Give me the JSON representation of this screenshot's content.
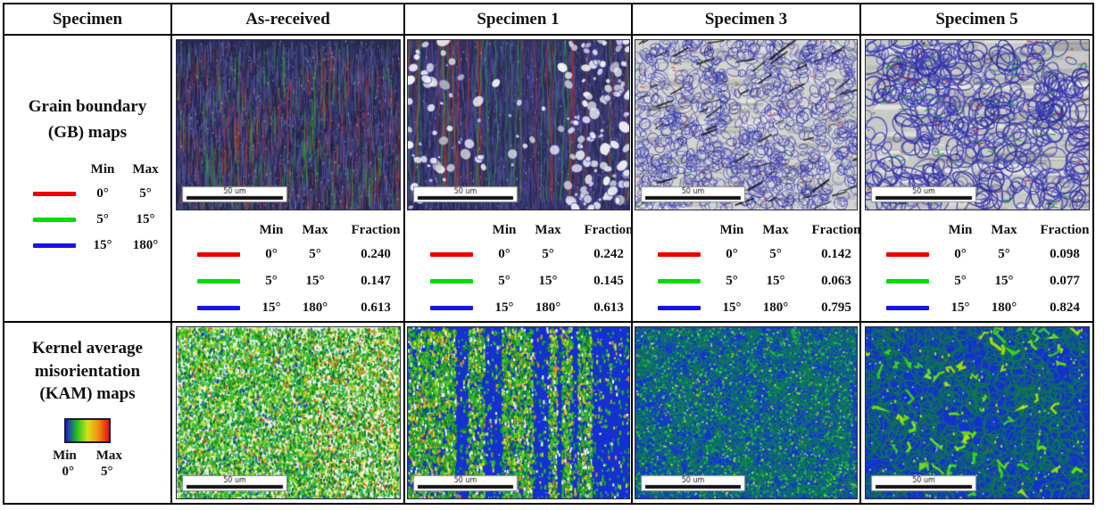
{
  "header": {
    "col0": "Specimen",
    "col1": "As-received",
    "col2": "Specimen 1",
    "col3": "Specimen 3",
    "col4": "Specimen 5"
  },
  "gb": {
    "row_label": "Grain boundary (GB) maps",
    "legend": {
      "min_header": "Min",
      "max_header": "Max",
      "rows": [
        {
          "color": "#ee0000",
          "min": "0°",
          "max": "5°"
        },
        {
          "color": "#00dd00",
          "min": "5°",
          "max": "15°"
        },
        {
          "color": "#1515e5",
          "min": "15°",
          "max": "180°"
        }
      ]
    },
    "fraction_header": {
      "min": "Min",
      "max": "Max",
      "fraction": "Fraction"
    },
    "columns": [
      {
        "name": "As-received",
        "fractions": [
          "0.240",
          "0.147",
          "0.613"
        ]
      },
      {
        "name": "Specimen 1",
        "fractions": [
          "0.242",
          "0.145",
          "0.613"
        ]
      },
      {
        "name": "Specimen 3",
        "fractions": [
          "0.142",
          "0.063",
          "0.795"
        ]
      },
      {
        "name": "Specimen 5",
        "fractions": [
          "0.098",
          "0.077",
          "0.824"
        ]
      }
    ]
  },
  "kam": {
    "row_label": "Kernel average misorientation (KAM) maps",
    "colorbar": {
      "stops": [
        "#2020c8",
        "#20c020",
        "#d8e020",
        "#f09010",
        "#e01010"
      ],
      "min_label": "Min",
      "max_label": "Max",
      "min_value": "0°",
      "max_value": "5°"
    }
  },
  "scale_bar_label": "50 um",
  "images": {
    "gb": [
      {
        "style": "dense-vertical-bands"
      },
      {
        "style": "vertical-bands-partial-grains"
      },
      {
        "style": "fine-grain-network"
      },
      {
        "style": "coarse-grain-network"
      }
    ],
    "kam": [
      {
        "style": "green-speckle"
      },
      {
        "style": "green-blue-vertical-streaks"
      },
      {
        "style": "blue-fine-green-network"
      },
      {
        "style": "blue-coarse-green-network"
      }
    ]
  }
}
